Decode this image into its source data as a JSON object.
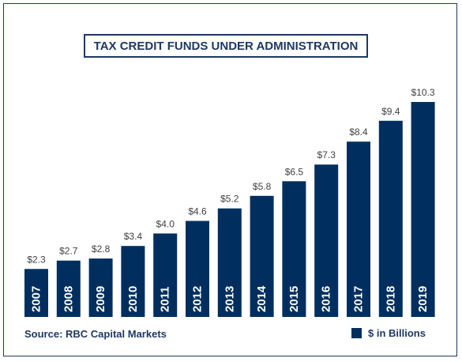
{
  "chart_data": {
    "type": "bar",
    "title": "TAX CREDIT FUNDS UNDER ADMINISTRATION",
    "categories": [
      "2007",
      "2008",
      "2009",
      "2010",
      "2011",
      "2012",
      "2013",
      "2014",
      "2015",
      "2016",
      "2017",
      "2018",
      "2019"
    ],
    "series": [
      {
        "name": "$ in Billions",
        "values": [
          2.3,
          2.7,
          2.8,
          3.4,
          4.0,
          4.6,
          5.2,
          5.8,
          6.5,
          7.3,
          8.4,
          9.4,
          10.3
        ],
        "color": "#002f5f"
      }
    ],
    "data_labels": [
      "$2.3",
      "$2.7",
      "$2.8",
      "$3.4",
      "$4.0",
      "$4.6",
      "$5.2",
      "$5.8",
      "$6.5",
      "$7.3",
      "$8.4",
      "$9.4",
      "$10.3"
    ],
    "xlabel": "",
    "ylabel": "",
    "ylim": [
      0,
      10.3
    ],
    "grid": false,
    "legend_position": "bottom-right",
    "source": "Source: RBC Capital Markets",
    "legend_label": "$ in Billions"
  },
  "colors": {
    "bar": "#002f5f",
    "text": "#1f3864",
    "category_text": "#ffffff",
    "value_text": "#404040"
  }
}
